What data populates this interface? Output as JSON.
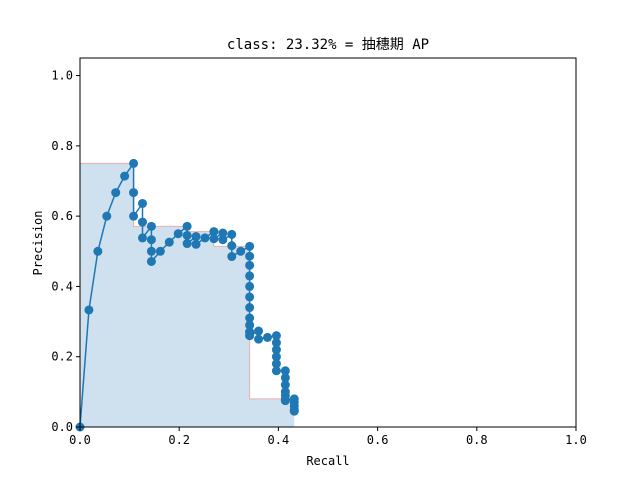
{
  "chart_data": {
    "type": "line",
    "title": "class: 23.32% = 抽穗期 AP",
    "xlabel": "Recall",
    "ylabel": "Precision",
    "xlim": [
      0,
      1
    ],
    "ylim": [
      0,
      1.05
    ],
    "xticks": [
      "0.0",
      "0.2",
      "0.4",
      "0.6",
      "0.8",
      "1.0"
    ],
    "yticks": [
      "0.0",
      "0.2",
      "0.4",
      "0.6",
      "0.8",
      "1.0"
    ],
    "grid": false,
    "legend": "none",
    "colors": {
      "line": "#1f77b4",
      "area_fill": "#cfe0ef",
      "envelope": "#e8b0b0"
    },
    "series": [
      {
        "values_x": [
          0.0,
          0.018,
          0.036,
          0.054,
          0.072,
          0.09,
          0.108,
          0.108,
          0.108,
          0.126,
          0.126,
          0.126,
          0.144,
          0.144,
          0.144,
          0.144,
          0.162,
          0.18,
          0.198,
          0.216,
          0.216,
          0.216,
          0.234,
          0.234,
          0.252,
          0.27,
          0.27,
          0.288,
          0.288,
          0.306,
          0.306,
          0.306,
          0.324,
          0.342,
          0.342,
          0.342,
          0.342,
          0.342,
          0.342,
          0.342,
          0.342,
          0.342,
          0.342,
          0.342,
          0.342,
          0.342,
          0.36,
          0.36,
          0.378,
          0.396,
          0.396,
          0.396,
          0.396,
          0.396,
          0.396,
          0.414,
          0.414,
          0.414,
          0.414,
          0.414,
          0.414,
          0.414,
          0.432,
          0.432,
          0.432,
          0.432,
          0.432
        ],
        "values_y": [
          0.0,
          0.333,
          0.5,
          0.6,
          0.667,
          0.714,
          0.75,
          0.667,
          0.6,
          0.636,
          0.583,
          0.538,
          0.571,
          0.533,
          0.5,
          0.471,
          0.5,
          0.526,
          0.55,
          0.571,
          0.545,
          0.522,
          0.542,
          0.52,
          0.538,
          0.556,
          0.536,
          0.552,
          0.533,
          0.548,
          0.516,
          0.485,
          0.5,
          0.514,
          0.486,
          0.46,
          0.43,
          0.4,
          0.37,
          0.34,
          0.31,
          0.29,
          0.27,
          0.26,
          0.27,
          0.26,
          0.273,
          0.25,
          0.255,
          0.26,
          0.24,
          0.22,
          0.2,
          0.18,
          0.16,
          0.16,
          0.14,
          0.12,
          0.1,
          0.09,
          0.08,
          0.075,
          0.08,
          0.07,
          0.06,
          0.05,
          0.045
        ]
      }
    ],
    "interpolated_envelope": {
      "x": [
        0.0,
        0.108,
        0.108,
        0.144,
        0.144,
        0.216,
        0.216,
        0.27,
        0.27,
        0.342,
        0.342,
        0.432
      ],
      "y": [
        0.75,
        0.75,
        0.571,
        0.571,
        0.571,
        0.571,
        0.556,
        0.556,
        0.514,
        0.514,
        0.08,
        0.08
      ]
    }
  }
}
